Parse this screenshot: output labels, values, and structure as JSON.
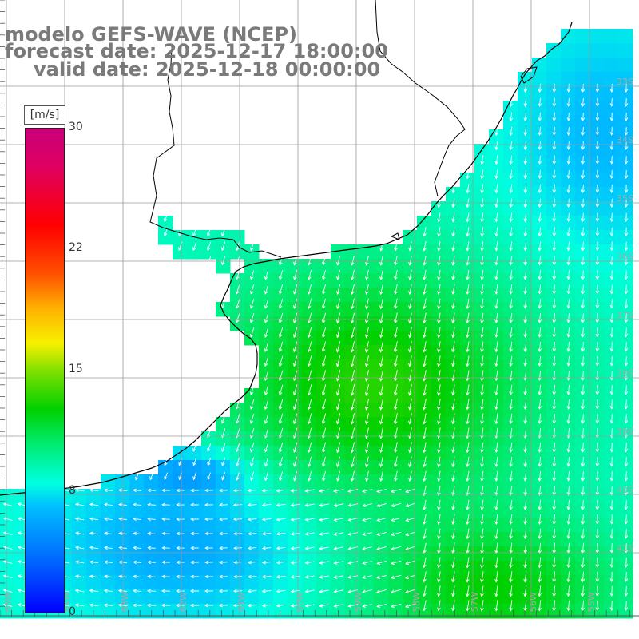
{
  "title": {
    "line1": "modelo GEFS-WAVE (NCEP)",
    "line2": "forecast date: 2025-12-17 18:00:00",
    "line3": "valid date: 2025-12-18 00:00:00"
  },
  "colorbar": {
    "unit": "[m/s]",
    "ticks": [
      "30",
      "22",
      "15",
      "8",
      "0"
    ],
    "min": 0,
    "max": 30,
    "colors": [
      "#0000ff",
      "#00c0ff",
      "#00ffe0",
      "#00d000",
      "#f8f000",
      "#ff0000",
      "#c8007a"
    ]
  },
  "grid_labels": {
    "right": [
      "33S",
      "34S",
      "35S",
      "36S",
      "37S",
      "38S",
      "39S",
      "40S",
      "41S"
    ],
    "bottom": [
      "65W",
      "64W",
      "63W",
      "62W",
      "61W",
      "60W",
      "59W",
      "58W",
      "57W",
      "56W",
      "55W"
    ]
  },
  "colors": {
    "land": "#ffffff",
    "grid": "#a0a0a0",
    "coast": "#000000",
    "arrow": "#ffffff"
  }
}
